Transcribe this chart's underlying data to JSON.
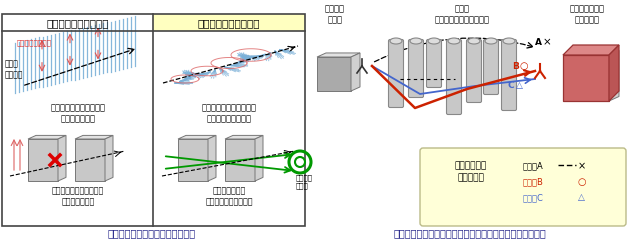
{
  "fig1_title_left": "直線偏波（従来方式）",
  "fig1_title_right": "回転偏波（適用方式）",
  "fig1_caption": "図１　直線偏波と回転偏波の比較",
  "fig2_caption": "図２　試作した無線機による、最適な偏波の受信イメージ",
  "fig1_label_wave": "偏波（振動方向）",
  "fig1_label_dir": "電波の\n進行方向",
  "fig1_label_linear": "電波の振動方向（偏波）\nが常に同じ向き",
  "fig1_label_rotate": "電波の振動方向（偏波）\nが時間とともに回転",
  "fig1_label_block1": "障害物の形状によっては\n電波が届かない",
  "fig1_label_block2": "障害物の形状に\n影響されず電波が届く",
  "fig1_label_arrive": "到達可能\nな偏波",
  "fig2_label_tx": "回転偏波\n送信機",
  "fig2_label_obs": "障害物\n（複数の電波到達経路）",
  "fig2_label_rx": "試作した無線機\n（受信機）",
  "fig2_legend_auto": "最適な偏波を\n自動で選択",
  "fig2_legend_a": "ルートA",
  "fig2_legend_b": "ルートB",
  "fig2_legend_c": "ルートC",
  "fig2_mark_x": "×",
  "fig2_mark_o": "○",
  "fig2_mark_tri": "△"
}
